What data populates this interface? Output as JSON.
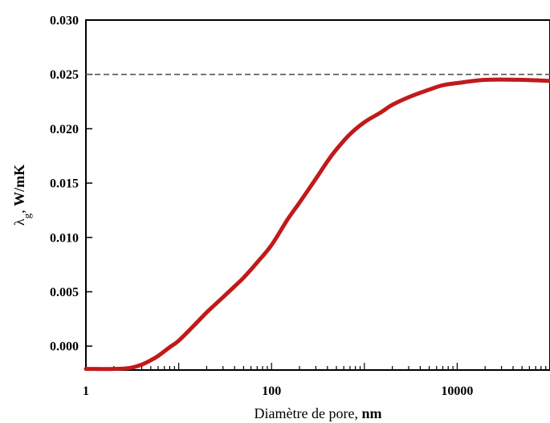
{
  "chart_data": {
    "type": "line",
    "xscale": "log",
    "xlabel": {
      "text": "Diamètre de pore, ",
      "unit": "nm"
    },
    "ylabel": {
      "symbol": "λ",
      "subscript": "g",
      "sep": ", ",
      "unit": "W/mK"
    },
    "xlim": [
      1,
      100000
    ],
    "ylim": [
      -0.0022,
      0.03
    ],
    "x_ticks": [
      {
        "value": 1,
        "label": "1"
      },
      {
        "value": 100,
        "label": "100"
      },
      {
        "value": 10000,
        "label": "10000"
      }
    ],
    "y_ticks": [
      {
        "value": 0.0,
        "label": "0.000"
      },
      {
        "value": 0.005,
        "label": "0.005"
      },
      {
        "value": 0.01,
        "label": "0.010"
      },
      {
        "value": 0.015,
        "label": "0.015"
      },
      {
        "value": 0.02,
        "label": "0.020"
      },
      {
        "value": 0.025,
        "label": "0.025"
      },
      {
        "value": 0.03,
        "label": "0.030"
      }
    ],
    "reference_line": {
      "y": 0.025,
      "style": "dashed",
      "color": "#555555"
    },
    "series": [
      {
        "color": "#c01a1a",
        "x": [
          1,
          2,
          3,
          4,
          5,
          6,
          8,
          10,
          15,
          20,
          30,
          40,
          50,
          70,
          100,
          150,
          200,
          300,
          400,
          500,
          700,
          1000,
          1500,
          2000,
          3000,
          5000,
          7000,
          10000,
          20000,
          50000,
          100000
        ],
        "y": [
          -0.0021,
          -0.0021,
          -0.002,
          -0.0017,
          -0.0013,
          -0.0009,
          -0.0001,
          0.0005,
          0.002,
          0.0031,
          0.0045,
          0.0055,
          0.0063,
          0.0077,
          0.0093,
          0.0117,
          0.0132,
          0.0154,
          0.017,
          0.0181,
          0.0195,
          0.0206,
          0.0215,
          0.0222,
          0.0229,
          0.0236,
          0.024,
          0.0242,
          0.0245,
          0.0245,
          0.0244
        ]
      }
    ],
    "grid": false
  }
}
